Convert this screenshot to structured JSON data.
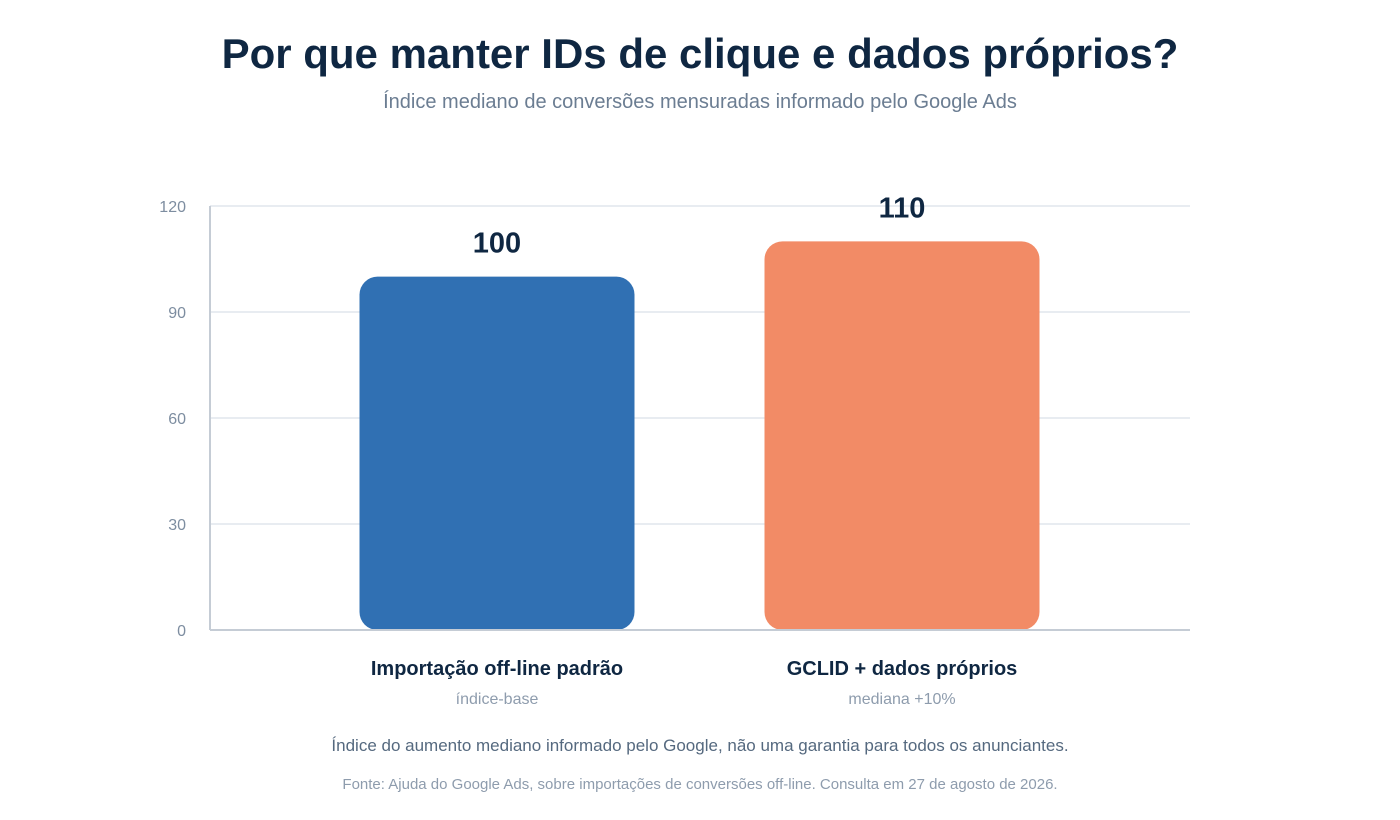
{
  "header": {
    "title": "Por que manter IDs de clique e dados próprios?",
    "subtitle": "Índice mediano de conversões mensuradas informado pelo Google Ads"
  },
  "chart_data": {
    "type": "bar",
    "categories": [
      "Importação off-line padrão",
      "GCLID + dados próprios"
    ],
    "category_sublabels": [
      "índice-base",
      "mediana +10%"
    ],
    "values": [
      100,
      110
    ],
    "data_labels": [
      "100",
      "110"
    ],
    "ylim": [
      0,
      120
    ],
    "yticks": [
      0,
      30,
      60,
      90,
      120
    ],
    "grid": true,
    "colors": [
      "#3070b3",
      "#f28b66"
    ]
  },
  "footer": {
    "note": "Índice do aumento mediano informado pelo Google, não uma garantia para todos os anunciantes.",
    "source": "Fonte: Ajuda do Google Ads, sobre importações de conversões off-line. Consulta em 27 de agosto de 2026."
  },
  "colors": {
    "title": "#0f2742",
    "axis": "#c5ccd5",
    "grid": "#e8ecf1",
    "tick_label": "#7d8da0",
    "sublabel": "#8e9cad"
  }
}
